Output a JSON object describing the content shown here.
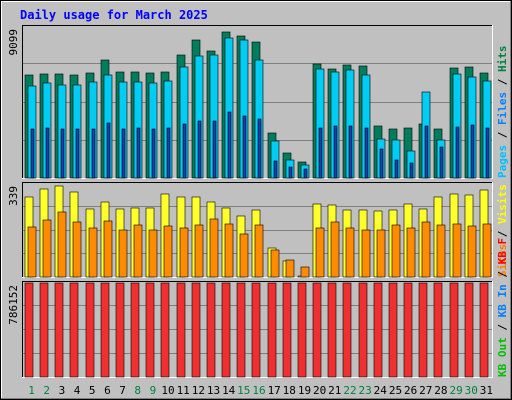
{
  "chart_data": {
    "type": "bar",
    "title": "Daily usage for March 2025",
    "categories": [
      "1",
      "2",
      "3",
      "4",
      "5",
      "6",
      "7",
      "8",
      "9",
      "10",
      "11",
      "12",
      "13",
      "14",
      "15",
      "16",
      "17",
      "18",
      "19",
      "20",
      "21",
      "22",
      "23",
      "24",
      "25",
      "26",
      "27",
      "28",
      "29",
      "30",
      "31"
    ],
    "weekend_days": [
      "1",
      "2",
      "8",
      "9",
      "15",
      "16",
      "22",
      "23",
      "29",
      "30"
    ],
    "panels": [
      {
        "id": "hits",
        "max_label": "9099",
        "ymax": 9099,
        "legend": [
          {
            "name": "Hits",
            "color": "#008040"
          },
          {
            "name": "Files",
            "color": "#0080ff"
          },
          {
            "name": "Pages",
            "color": "#00c0ff"
          }
        ],
        "series": [
          {
            "name": "Hits",
            "color": "#007d5c",
            "values": [
              6200,
              6260,
              6260,
              6200,
              6320,
              7130,
              6380,
              6380,
              6320,
              6390,
              7430,
              8290,
              7680,
              8790,
              8550,
              8190,
              2720,
              1520,
              970,
              6870,
              6560,
              6810,
              6750,
              3150,
              2980,
              3020,
              3240,
              2930,
              6600,
              6680,
              6320
            ]
          },
          {
            "name": "Files",
            "color": "#00ccf4",
            "values": [
              5550,
              5740,
              5620,
              5600,
              5800,
              6190,
              5810,
              5810,
              5740,
              5820,
              6690,
              7380,
              7430,
              8430,
              8290,
              7130,
              2210,
              1090,
              810,
              6560,
              6400,
              6520,
              6190,
              2360,
              2270,
              1610,
              5210,
              2280,
              6260,
              6070,
              5870
            ]
          },
          {
            "name": "Pages",
            "color": "#1e3db0",
            "values": [
              2950,
              2990,
              2960,
              2980,
              2960,
              3290,
              2970,
              3040,
              2980,
              3010,
              3270,
              3430,
              3460,
              3950,
              3760,
              3570,
              1050,
              640,
              520,
              2990,
              3150,
              3150,
              3010,
              1750,
              1090,
              880,
              3120,
              1850,
              3100,
              3190,
              3040
            ]
          }
        ]
      },
      {
        "id": "visits",
        "max_label": "339",
        "ymax": 339,
        "legend": [
          {
            "name": "Visits",
            "color": "#ffff00"
          },
          {
            "name": "Sites",
            "color": "#ff8000"
          }
        ],
        "series": [
          {
            "name": "Visits",
            "color": "#ffff2a",
            "values": [
              292,
              322,
              331,
              311,
              247,
              275,
              248,
              250,
              250,
              301,
              293,
              290,
              272,
              251,
              222,
              243,
              104,
              57,
              0,
              265,
              262,
              246,
              243,
              242,
              243,
              265,
              248,
              293,
              303,
              299,
              318
            ]
          },
          {
            "name": "Sites",
            "color": "#ff8c00",
            "values": [
              183,
              207,
              236,
              199,
              177,
              203,
              172,
              189,
              170,
              187,
              178,
              191,
              212,
              195,
              156,
              189,
              99,
              63,
              35,
              178,
              199,
              179,
              172,
              171,
              191,
              178,
              202,
              191,
              192,
              185,
              194
            ]
          }
        ]
      },
      {
        "id": "kbytes",
        "max_label": "786152",
        "ymax": 786152,
        "legend": [
          {
            "name": "KB F",
            "color": "#ff0000"
          },
          {
            "name": "KB In",
            "color": "#0080ff"
          },
          {
            "name": "KB Out",
            "color": "#00c000"
          }
        ],
        "series": [
          {
            "name": "KB F",
            "color": "#f03030",
            "values": [
              786152,
              786152,
              786152,
              786152,
              786152,
              786152,
              786152,
              786152,
              786152,
              786152,
              786152,
              786152,
              786152,
              786152,
              786152,
              786152,
              786152,
              786152,
              786152,
              786152,
              786152,
              786152,
              786152,
              786152,
              786152,
              786152,
              786152,
              786152,
              786152,
              786152,
              786152
            ]
          }
        ]
      }
    ]
  }
}
